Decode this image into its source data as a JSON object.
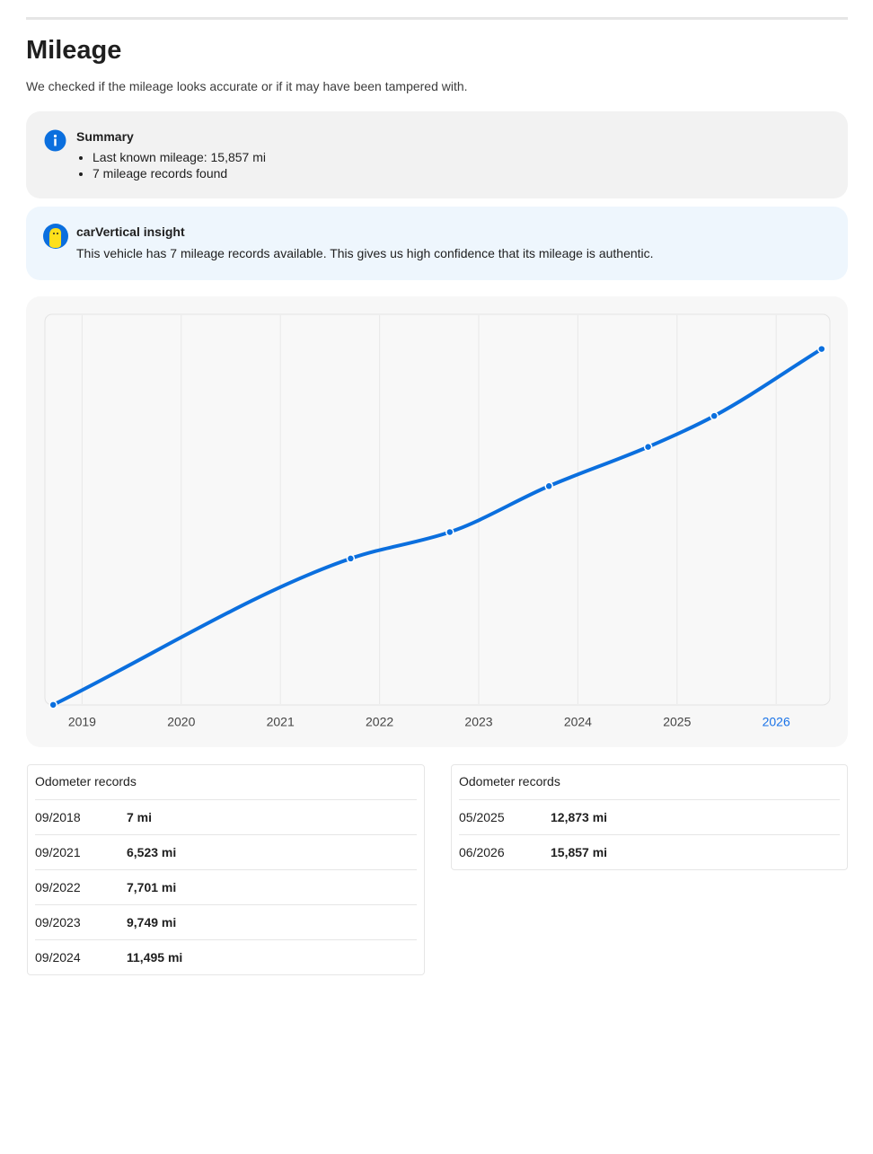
{
  "header": {
    "title": "Mileage",
    "subtitle": "We checked if the mileage looks accurate or if it may have been tampered with."
  },
  "summary": {
    "title": "Summary",
    "items": [
      "Last known mileage: 15,857 mi",
      "7 mileage records found"
    ]
  },
  "insight": {
    "title": "carVertical insight",
    "text": "This vehicle has 7 mileage records available. This gives us high confidence that its mileage is authentic."
  },
  "chart_data": {
    "type": "line",
    "x": [
      "2018-09",
      "2021-09",
      "2022-09",
      "2023-09",
      "2024-09",
      "2025-05",
      "2026-06"
    ],
    "values": [
      7,
      6523,
      7701,
      9749,
      11495,
      12873,
      15857
    ],
    "color": "#0b6fde",
    "xlim": [
      "2018-08",
      "2026-07"
    ],
    "xticks": [
      2019,
      2020,
      2021,
      2022,
      2023,
      2024,
      2025,
      2026
    ],
    "ylim": [
      0,
      17400
    ],
    "grid": true,
    "highlight_xtick": 2026,
    "highlight_color": "#1a73e8"
  },
  "tables": [
    {
      "header": "Odometer records",
      "rows": [
        [
          "09/2018",
          "7 mi"
        ],
        [
          "09/2021",
          "6,523 mi"
        ],
        [
          "09/2022",
          "7,701 mi"
        ],
        [
          "09/2023",
          "9,749 mi"
        ],
        [
          "09/2024",
          "11,495 mi"
        ]
      ]
    },
    {
      "header": "Odometer records",
      "rows": [
        [
          "05/2025",
          "12,873 mi"
        ],
        [
          "06/2026",
          "15,857 mi"
        ]
      ]
    }
  ]
}
